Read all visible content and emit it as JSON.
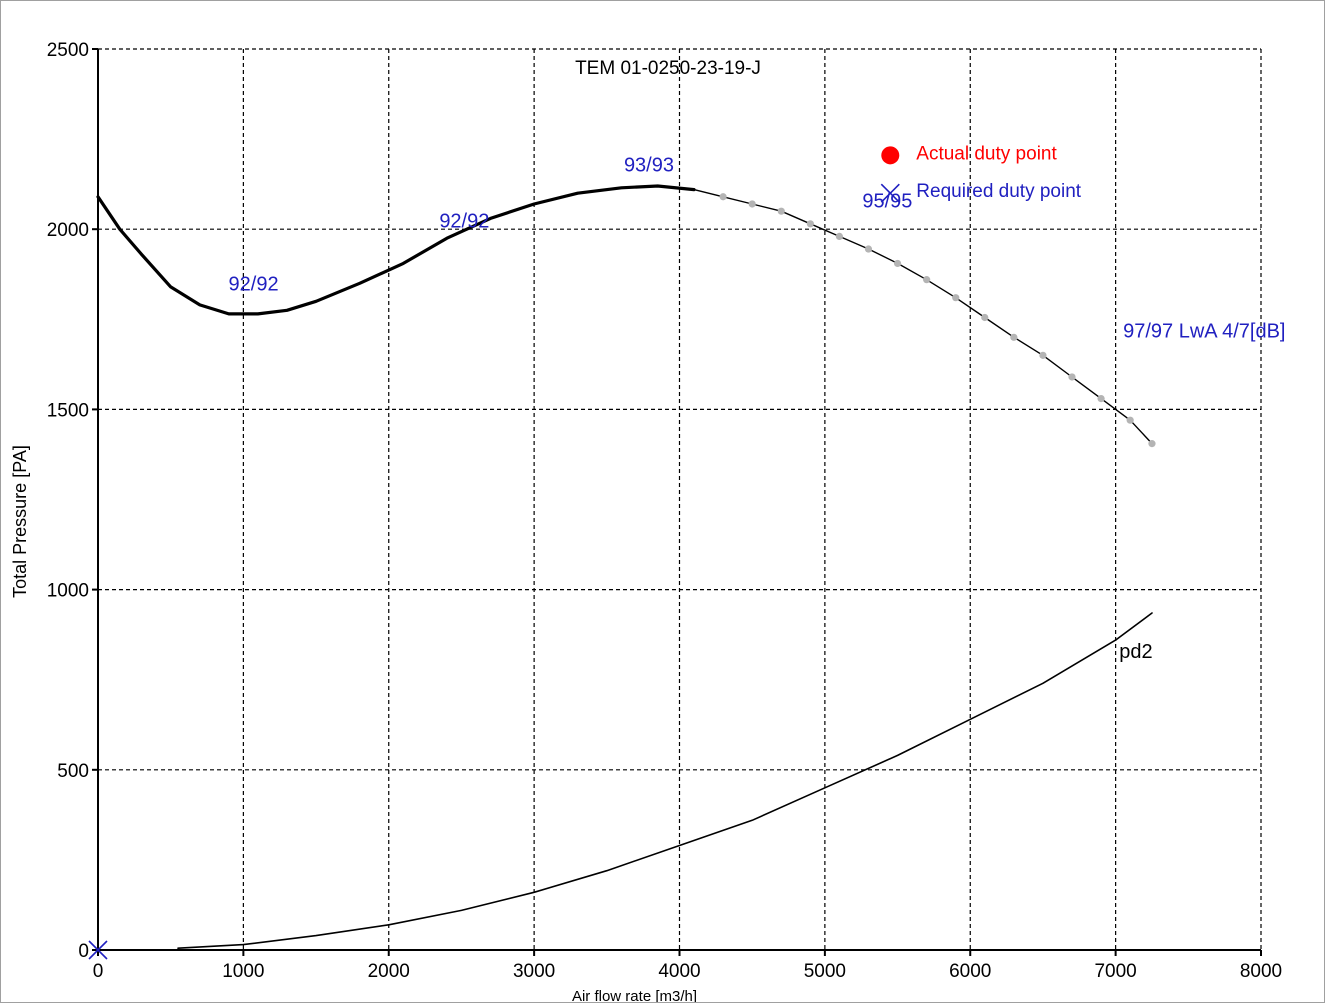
{
  "chart_data": {
    "type": "line",
    "title": "TEM 01-0250-23-19-J",
    "xlabel": "Air flow rate [m3/h]",
    "ylabel": "Total Pressure [PA]",
    "xlim": [
      0,
      8000
    ],
    "ylim": [
      0,
      2500
    ],
    "xticks": [
      0,
      1000,
      2000,
      3000,
      4000,
      5000,
      6000,
      7000,
      8000
    ],
    "yticks": [
      0,
      500,
      1000,
      1500,
      2000,
      2500
    ],
    "xtick_labels": [
      "0",
      "1000",
      "2000",
      "3000",
      "4000",
      "5000",
      "6000",
      "7000",
      "8000"
    ],
    "ytick_labels": [
      "0",
      "500",
      "1000",
      "1500",
      "2000",
      "2500"
    ],
    "grid": true,
    "series": [
      {
        "key": "fan-curve",
        "color": "#000000",
        "x": [
          0,
          150,
          300,
          500,
          700,
          900,
          1100,
          1300,
          1500,
          1800,
          2100,
          2400,
          2700,
          3000,
          3300,
          3600,
          3850,
          4100
        ],
        "y": [
          2090,
          2000,
          1930,
          1840,
          1790,
          1765,
          1765,
          1775,
          1800,
          1850,
          1905,
          1975,
          2030,
          2070,
          2100,
          2115,
          2120,
          2110
        ]
      },
      {
        "key": "fan-curve-extension",
        "color": "#000000",
        "marker_color": "#b4b4b4",
        "x": [
          4100,
          4300,
          4500,
          4700,
          4900,
          5100,
          5300,
          5500,
          5700,
          5900,
          6100,
          6300,
          6500,
          6700,
          6900,
          7100,
          7250
        ],
        "y": [
          2110,
          2090,
          2070,
          2050,
          2015,
          1980,
          1945,
          1905,
          1860,
          1810,
          1755,
          1700,
          1650,
          1590,
          1530,
          1470,
          1405
        ]
      },
      {
        "name": "pd2",
        "key": "pd2",
        "color": "#000000",
        "x": [
          550,
          1000,
          1500,
          2000,
          2500,
          3000,
          3500,
          4000,
          4500,
          5000,
          5500,
          6000,
          6500,
          7000,
          7250
        ],
        "y": [
          5,
          15,
          40,
          70,
          110,
          160,
          220,
          290,
          360,
          450,
          540,
          640,
          740,
          860,
          935
        ]
      }
    ],
    "annotations": [
      {
        "text": "92/92",
        "x": 1070,
        "y": 1830,
        "color": "#2020c0"
      },
      {
        "text": "92/92",
        "x": 2520,
        "y": 2005,
        "color": "#2020c0"
      },
      {
        "text": "93/93",
        "x": 3790,
        "y": 2160,
        "color": "#2020c0"
      },
      {
        "text": "95/95",
        "x": 5430,
        "y": 2060,
        "color": "#2020c0"
      },
      {
        "text": "97/97 LwA 4/7[dB]",
        "x": 7610,
        "y": 1700,
        "color": "#2020c0"
      },
      {
        "text": "pd2",
        "x": 7140,
        "y": 810,
        "color": "#000000"
      }
    ],
    "points": [
      {
        "label": "Actual duty point",
        "x": 5450,
        "y": 2205,
        "marker": "filled-circle",
        "color": "#ff0000"
      },
      {
        "label": "Required duty point",
        "x": 5450,
        "y": 2100,
        "marker": "x",
        "color": "#2020c0"
      },
      {
        "label": "",
        "x": 0,
        "y": 0,
        "marker": "x",
        "color": "#2020c0"
      }
    ]
  }
}
